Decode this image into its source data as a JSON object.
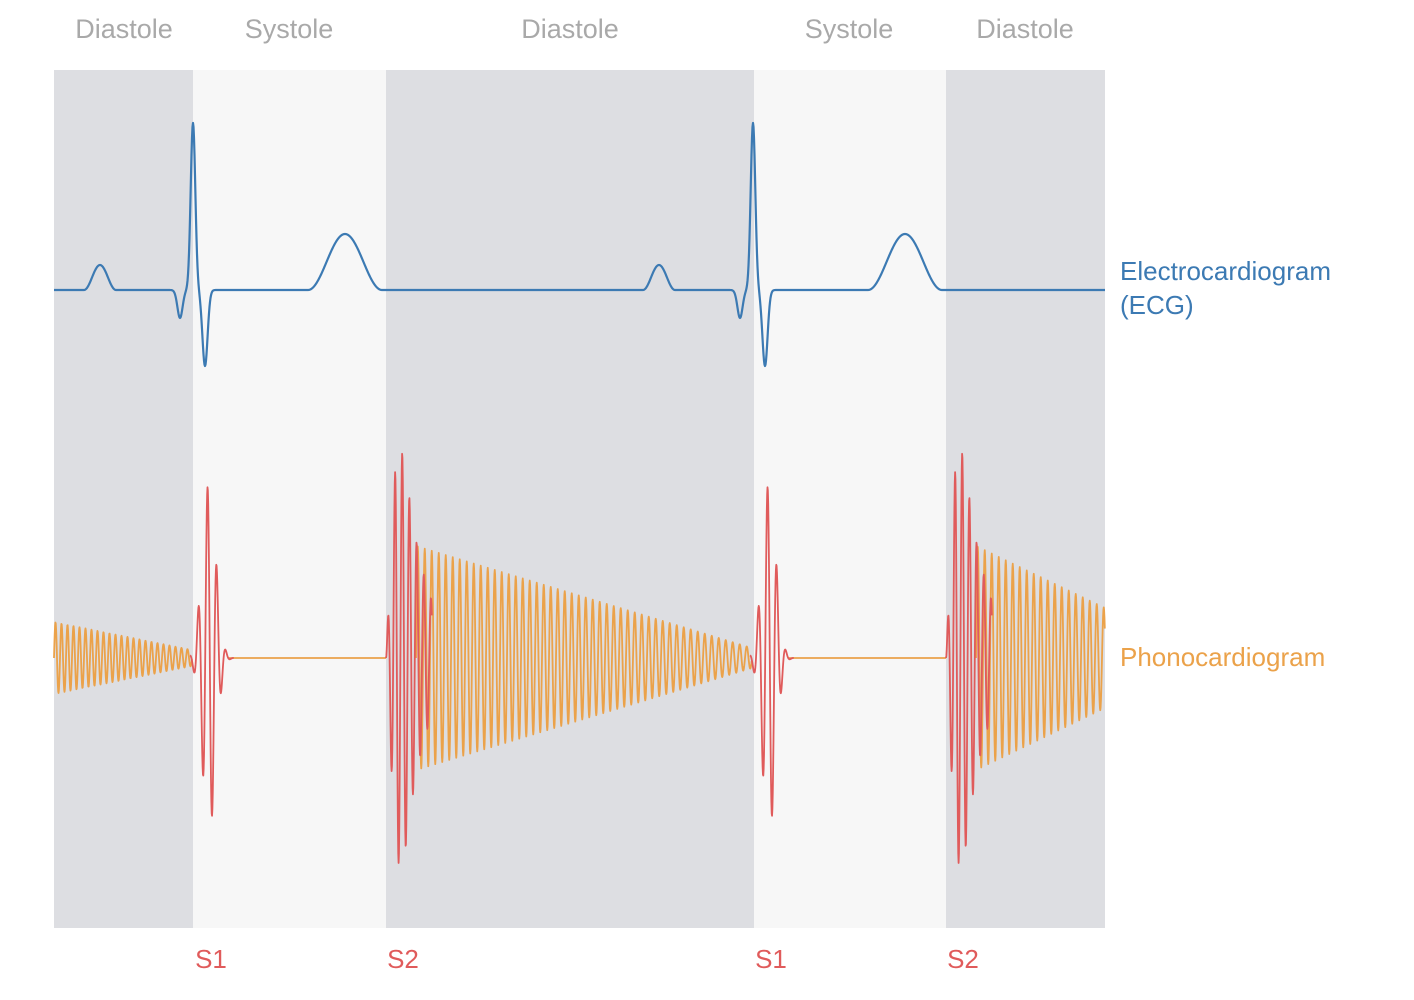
{
  "phases": [
    "Diastole",
    "Systole",
    "Diastole",
    "Systole",
    "Diastole"
  ],
  "sounds": [
    "S1",
    "S2",
    "S1",
    "S2"
  ],
  "traces": {
    "ecg": {
      "line1": "Electrocardiogram",
      "line2": "(ECG)"
    },
    "pcg": {
      "label": "Phonocardiogram"
    }
  },
  "colors": {
    "diastole_band": "#dddee2",
    "systole_band": "#f7f7f7",
    "ecg": "#3c7ab3",
    "pcg_murmur": "#eba24a",
    "heart_sound": "#e05b5b",
    "phase_text": "#a9a9a9"
  }
}
